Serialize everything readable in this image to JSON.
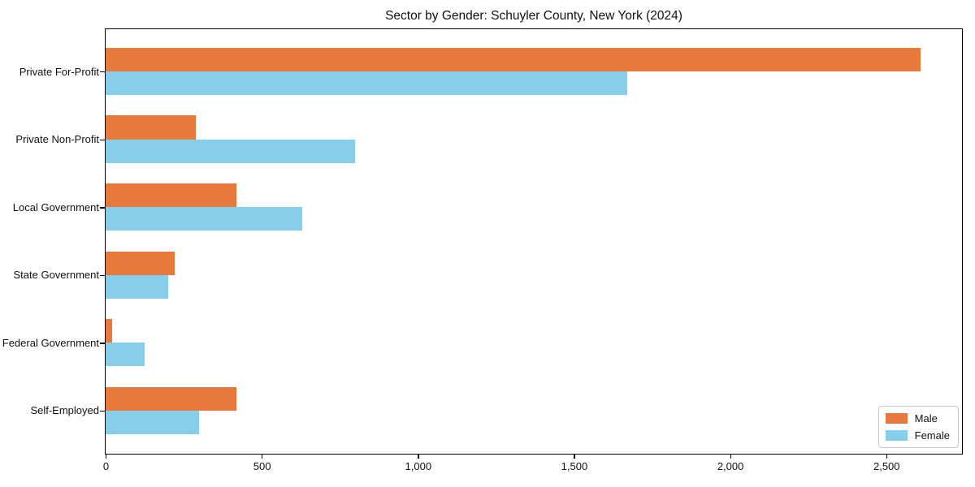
{
  "title": "Sector by Gender: Schuyler County, New York (2024)",
  "chart_data": {
    "type": "bar",
    "orientation": "horizontal",
    "title": "Sector by Gender: Schuyler County, New York (2024)",
    "categories": [
      "Private For-Profit",
      "Private Non-Profit",
      "Local Government",
      "State Government",
      "Federal Government",
      "Self-Employed"
    ],
    "series": [
      {
        "name": "Male",
        "color": "#e8793c",
        "values": [
          2610,
          290,
          420,
          220,
          21,
          420
        ]
      },
      {
        "name": "Female",
        "color": "#87ceea",
        "values": [
          1670,
          800,
          630,
          200,
          125,
          300
        ]
      }
    ],
    "xlabel": "",
    "ylabel": "",
    "xlim": [
      0,
      2740
    ],
    "xticks": [
      0,
      500,
      1000,
      1500,
      2000,
      2500
    ],
    "xtick_labels": [
      "0",
      "500",
      "1,000",
      "1,500",
      "2,000",
      "2,500"
    ],
    "grid": false,
    "legend_position": "lower right",
    "axis_color": "#000000",
    "background_color": "#ffffff"
  }
}
